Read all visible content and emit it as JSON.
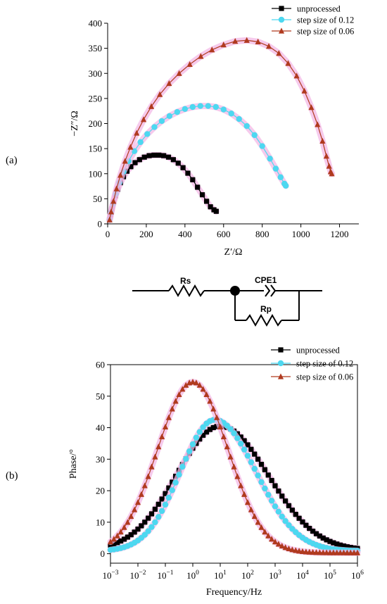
{
  "panels": {
    "a": "(a)",
    "b": "(b)"
  },
  "circuit": {
    "rs_label": "Rs",
    "cpe_label": "CPE1",
    "rp_label": "Rp"
  },
  "chart_data": [
    {
      "type": "scatter",
      "panel": "(a)",
      "title": "",
      "xlabel": "Z′/Ω",
      "ylabel": "−Z″/Ω",
      "xlim": [
        0,
        1300
      ],
      "ylim": [
        0,
        400
      ],
      "xticks": [
        0,
        200,
        400,
        600,
        800,
        1000,
        1200
      ],
      "yticks": [
        0,
        50,
        100,
        150,
        200,
        250,
        300,
        350,
        400
      ],
      "legend_position": "top-right",
      "series": [
        {
          "name": "unprocessed",
          "color": "#000000",
          "marker": "square",
          "x": [
            10,
            15,
            22,
            30,
            40,
            52,
            66,
            82,
            100,
            120,
            142,
            165,
            190,
            215,
            240,
            265,
            290,
            315,
            340,
            365,
            390,
            415,
            440,
            465,
            490,
            512,
            532,
            550,
            562
          ],
          "y": [
            8,
            18,
            30,
            43,
            56,
            69,
            82,
            94,
            105,
            114,
            122,
            128,
            133,
            136,
            137,
            137,
            136,
            133,
            128,
            121,
            112,
            101,
            88,
            73,
            58,
            45,
            34,
            28,
            25
          ]
        },
        {
          "name": "step size of 0.12",
          "color": "#4dd8f0",
          "marker": "circle",
          "x": [
            10,
            18,
            28,
            42,
            60,
            82,
            108,
            138,
            170,
            205,
            242,
            280,
            320,
            360,
            400,
            440,
            480,
            520,
            560,
            600,
            640,
            680,
            720,
            760,
            800,
            840,
            870,
            895,
            915,
            922
          ],
          "y": [
            8,
            22,
            40,
            60,
            82,
            104,
            125,
            145,
            163,
            179,
            193,
            205,
            215,
            223,
            229,
            233,
            235,
            235,
            233,
            228,
            220,
            209,
            195,
            177,
            155,
            130,
            110,
            93,
            80,
            76
          ]
        },
        {
          "name": "step size of 0.06",
          "color": "#b03a1f",
          "marker": "triangle",
          "x": [
            10,
            18,
            30,
            46,
            66,
            90,
            118,
            150,
            186,
            226,
            270,
            318,
            370,
            425,
            482,
            540,
            600,
            660,
            720,
            778,
            834,
            886,
            934,
            978,
            1018,
            1054,
            1086,
            1112,
            1132,
            1146,
            1154,
            1160
          ],
          "y": [
            8,
            24,
            45,
            70,
            97,
            125,
            153,
            181,
            208,
            234,
            258,
            280,
            300,
            318,
            334,
            347,
            357,
            364,
            366,
            363,
            354,
            340,
            320,
            295,
            265,
            232,
            198,
            165,
            135,
            115,
            104,
            100
          ]
        }
      ]
    },
    {
      "type": "scatter",
      "panel": "(b)",
      "title": "",
      "xlabel": "Frequency/Hz",
      "ylabel": "Phase/°",
      "xscale": "log",
      "xlim": [
        0.001,
        1000000
      ],
      "ylim": [
        -3,
        60
      ],
      "xtick_exponents": [
        -3,
        -2,
        -1,
        0,
        1,
        2,
        3,
        4,
        5,
        6
      ],
      "yticks": [
        0,
        10,
        20,
        30,
        40,
        50,
        60
      ],
      "legend_position": "top-right",
      "series": [
        {
          "name": "unprocessed",
          "color": "#000000",
          "marker": "square",
          "peak_log_freq": 1.0,
          "peak_phase": 40.5,
          "width_low": 1.6,
          "width_high": 1.75,
          "floor": 1.0
        },
        {
          "name": "step size of 0.12",
          "color": "#4dd8f0",
          "marker": "circle",
          "peak_log_freq": 0.8,
          "peak_phase": 42.5,
          "width_low": 1.25,
          "width_high": 1.5,
          "floor": 0.8
        },
        {
          "name": "step size of 0.06",
          "color": "#b03a1f",
          "marker": "triangle",
          "peak_log_freq": 0.0,
          "peak_phase": 54.5,
          "width_low": 1.28,
          "width_high": 1.28,
          "floor": 0.3
        }
      ]
    }
  ]
}
